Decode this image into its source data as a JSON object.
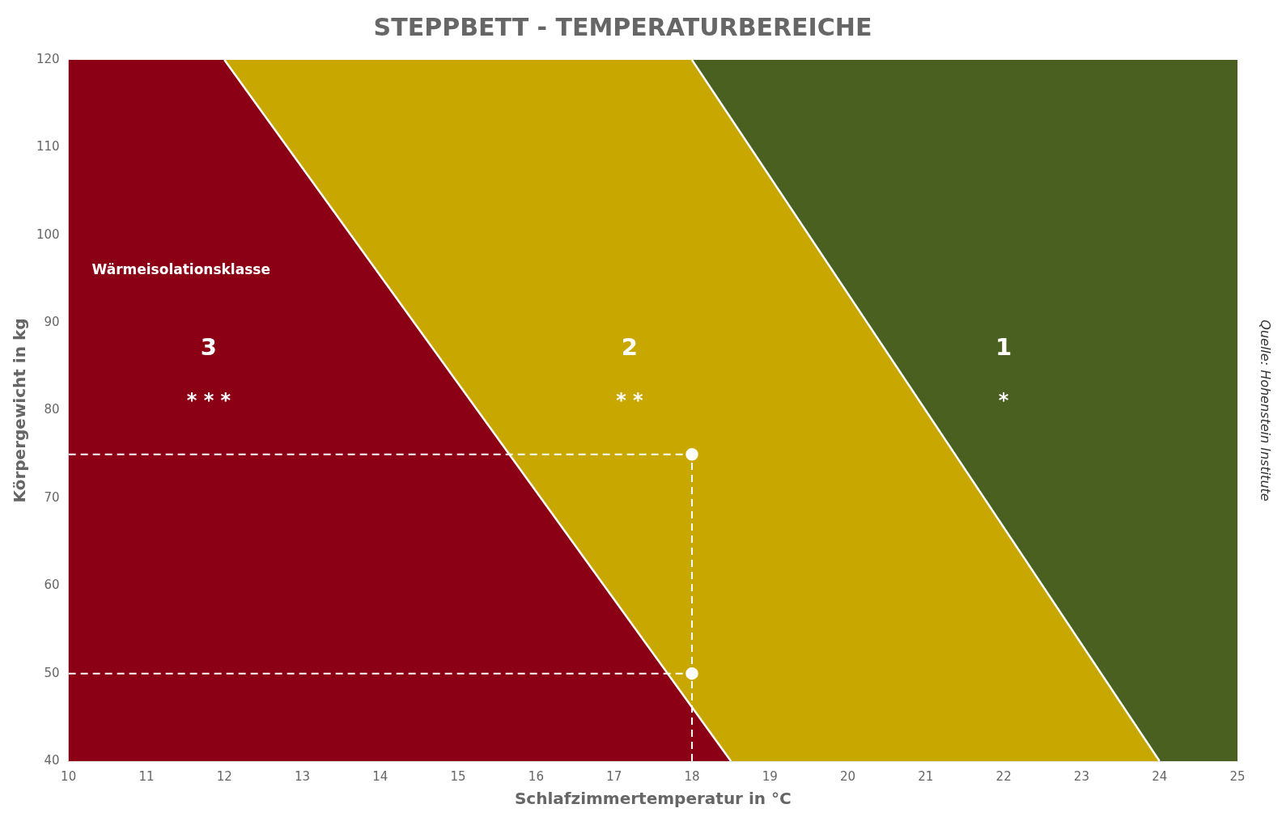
{
  "chart_data": {
    "type": "zones",
    "title": "STEPPBETT - TEMPERATURBEREICHE",
    "xlabel": "Schlafzimmertemperatur in °C",
    "ylabel": "Körpergewicht in kg",
    "source": "Quelle: Hohenstein Institute",
    "xlim": [
      10,
      25
    ],
    "ylim": [
      40,
      120
    ],
    "xticks": [
      10,
      11,
      12,
      13,
      14,
      15,
      16,
      17,
      18,
      19,
      20,
      21,
      22,
      23,
      24,
      25
    ],
    "yticks": [
      40,
      50,
      60,
      70,
      80,
      90,
      100,
      110,
      120
    ],
    "grid": false,
    "zone_label": {
      "text": "Wärmeisolationsklasse",
      "x": 10.3,
      "y": 96
    },
    "zones": [
      {
        "color": "#8B0015",
        "label": {
          "text": "3",
          "x": 11.8,
          "y": 87
        },
        "stars": {
          "text": "* * *",
          "x": 11.8,
          "y": 81
        }
      },
      {
        "color": "#C8A800",
        "label": {
          "text": "2",
          "x": 17.2,
          "y": 87
        },
        "stars": {
          "text": "* *",
          "x": 17.2,
          "y": 81
        }
      },
      {
        "color": "#4A6020",
        "label": {
          "text": "1",
          "x": 22.0,
          "y": 87
        },
        "stars": {
          "text": "*",
          "x": 22.0,
          "y": 81
        }
      }
    ],
    "boundaries": [
      {
        "x": [
          12.0,
          18.5
        ],
        "y": [
          120,
          40
        ],
        "color": "#FFFFFF"
      },
      {
        "x": [
          18.0,
          24.0
        ],
        "y": [
          120,
          40
        ],
        "color": "#FFFFFF"
      }
    ],
    "reference_lines": [
      {
        "x": [
          10,
          18
        ],
        "y": 75,
        "color": "#FFFFFF",
        "line_style": "dashed"
      },
      {
        "x": [
          10,
          18
        ],
        "y": 50,
        "color": "#FFFFFF",
        "line_style": "dashed"
      },
      {
        "x": 18,
        "y": [
          40,
          75
        ],
        "color": "#FFFFFF",
        "line_style": "dashed"
      }
    ],
    "points": {
      "x": [
        18,
        18
      ],
      "y": [
        75,
        50
      ],
      "color": "#FFFFFF",
      "marker": "circle"
    }
  }
}
